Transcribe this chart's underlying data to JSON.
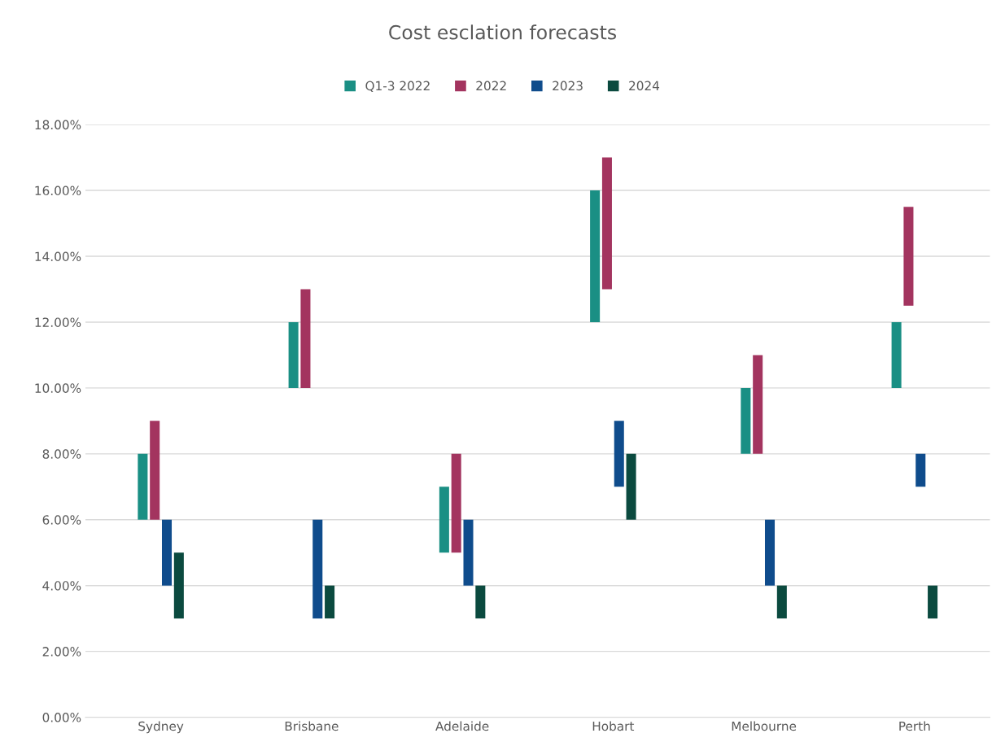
{
  "chart_data": {
    "type": "bar",
    "title": "Cost esclation forecasts",
    "categories": [
      "Sydney",
      "Brisbane",
      "Adelaide",
      "Hobart",
      "Melbourne",
      "Perth"
    ],
    "series": [
      {
        "name": "Q1-3 2022",
        "color": "#1a8f84",
        "base": [
          6,
          10,
          5,
          12,
          8,
          10
        ],
        "values": [
          2,
          2,
          2,
          4,
          2,
          2
        ]
      },
      {
        "name": "2022",
        "color": "#a3345f",
        "base": [
          6,
          10,
          5,
          13,
          8,
          12.5
        ],
        "values": [
          3,
          3,
          3,
          4,
          3,
          3
        ]
      },
      {
        "name": "2023",
        "color": "#0f4c8c",
        "base": [
          4,
          3,
          4,
          7,
          4,
          7
        ],
        "values": [
          2,
          3,
          2,
          2,
          2,
          1
        ]
      },
      {
        "name": "2024",
        "color": "#0b4a3f",
        "base": [
          3,
          3,
          3,
          6,
          3,
          3
        ],
        "values": [
          2,
          1,
          1,
          2,
          1,
          1
        ]
      }
    ],
    "ylim": [
      0,
      18
    ],
    "yticks": [
      {
        "value": 0,
        "label": "0.00%"
      },
      {
        "value": 2,
        "label": "2.00%"
      },
      {
        "value": 4,
        "label": "4.00%"
      },
      {
        "value": 6,
        "label": "6.00%"
      },
      {
        "value": 8,
        "label": "8.00%"
      },
      {
        "value": 10,
        "label": "10.00%"
      },
      {
        "value": 12,
        "label": "12.00%"
      },
      {
        "value": 14,
        "label": "14.00%"
      },
      {
        "value": 16,
        "label": "16.00%"
      },
      {
        "value": 18,
        "label": "18.00%"
      }
    ],
    "grid": "y",
    "legend": "top"
  }
}
